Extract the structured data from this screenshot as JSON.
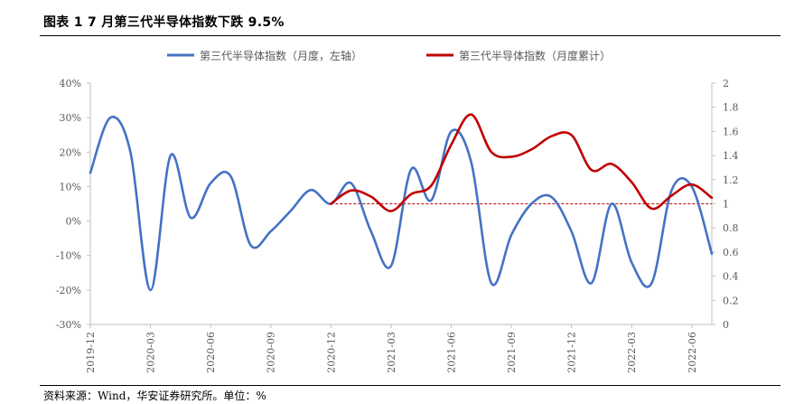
{
  "title": "图表 1 7 月第三代半导体指数下跌 9.5%",
  "source": "资料来源：Wind，华安证券研究所。单位：%",
  "colors": {
    "blue": "#4472C4",
    "red": "#C00000",
    "ref": "#C00000",
    "axis": "#BFBFBF"
  },
  "chart_data": {
    "type": "line",
    "legend_placement": "top",
    "grid": false,
    "x_tick_labels": [
      "2019-12",
      "2020-03",
      "2020-06",
      "2020-09",
      "2020-12",
      "2021-03",
      "2021-06",
      "2021-09",
      "2021-12",
      "2022-03",
      "2022-06"
    ],
    "y_left": {
      "ticks": [
        "40%",
        "30%",
        "20%",
        "10%",
        "0%",
        "-10%",
        "-20%",
        "-30%"
      ],
      "range": [
        -30,
        40
      ]
    },
    "y_right": {
      "ticks": [
        "2",
        "1.8",
        "1.6",
        "1.4",
        "1.2",
        "1",
        "0.8",
        "0.6",
        "0.4",
        "0.2",
        "0"
      ],
      "range": [
        0,
        2
      ]
    },
    "reference_line": {
      "axis": "right",
      "value": 1,
      "style": "dashed"
    },
    "series": [
      {
        "name": "第三代半导体指数（月度，左轴）",
        "axis": "left",
        "color": "#4472C4",
        "x": [
          "2019-12",
          "2020-01",
          "2020-02",
          "2020-03",
          "2020-04",
          "2020-05",
          "2020-06",
          "2020-07",
          "2020-08",
          "2020-09",
          "2020-10",
          "2020-11",
          "2020-12",
          "2021-01",
          "2021-02",
          "2021-03",
          "2021-04",
          "2021-05",
          "2021-06",
          "2021-07",
          "2021-08",
          "2021-09",
          "2021-10",
          "2021-11",
          "2021-12",
          "2022-01",
          "2022-02",
          "2022-03",
          "2022-04",
          "2022-05",
          "2022-06",
          "2022-07"
        ],
        "values": [
          14,
          30,
          20,
          -20,
          19,
          1,
          11,
          13,
          -7,
          -3,
          3,
          9,
          5,
          11,
          -3,
          -13,
          15,
          6,
          26,
          17,
          -18,
          -4,
          5,
          7,
          -3,
          -18,
          5,
          -12,
          -18,
          9,
          10,
          -9.5
        ]
      },
      {
        "name": "第三代半导体指数（月度累计）",
        "axis": "right",
        "color": "#C00000",
        "x": [
          "2020-12",
          "2021-01",
          "2021-02",
          "2021-03",
          "2021-04",
          "2021-05",
          "2021-06",
          "2021-07",
          "2021-08",
          "2021-09",
          "2021-10",
          "2021-11",
          "2021-12",
          "2022-01",
          "2022-02",
          "2022-03",
          "2022-04",
          "2022-05",
          "2022-06",
          "2022-07"
        ],
        "values": [
          1.0,
          1.11,
          1.06,
          0.94,
          1.08,
          1.15,
          1.49,
          1.74,
          1.43,
          1.39,
          1.45,
          1.56,
          1.57,
          1.28,
          1.33,
          1.18,
          0.96,
          1.07,
          1.16,
          1.05
        ]
      }
    ]
  }
}
